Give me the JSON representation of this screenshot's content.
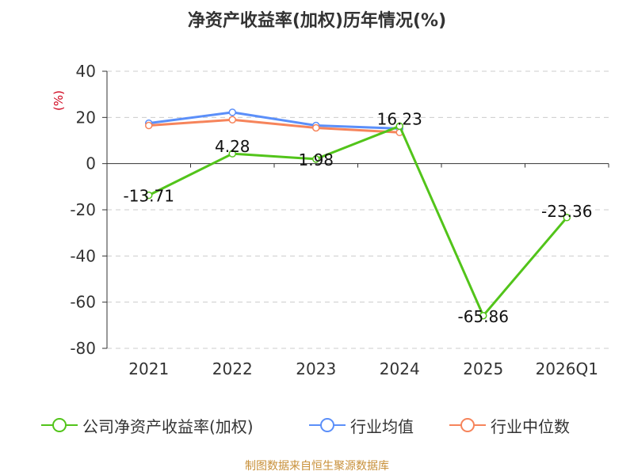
{
  "chart_data": {
    "type": "line",
    "title": "净资产收益率(加权)历年情况(%)",
    "ylabel": "(%)",
    "categories": [
      "2021",
      "2022",
      "2023",
      "2024",
      "2025",
      "2026Q1"
    ],
    "ylim": [
      -80,
      40
    ],
    "yticks": [
      40,
      20,
      0,
      -20,
      -40,
      -60,
      -80
    ],
    "grid": true,
    "legend_position": "bottom",
    "series": [
      {
        "name": "公司净资产收益率(加权)",
        "color": "#52c41a",
        "values": [
          -13.71,
          4.28,
          1.98,
          16.23,
          -65.86,
          -23.36
        ],
        "labels": [
          "-13.71",
          "4.28",
          "1.98",
          "16.23",
          "-65.86",
          "-23.36"
        ]
      },
      {
        "name": "行业均值",
        "color": "#5b8ff9",
        "values": [
          17.5,
          22.2,
          16.5,
          15.2,
          null,
          null
        ]
      },
      {
        "name": "行业中位数",
        "color": "#f6845b",
        "values": [
          16.5,
          19.0,
          15.5,
          13.5,
          null,
          null
        ]
      }
    ]
  },
  "source": "制图数据来自恒生聚源数据库"
}
